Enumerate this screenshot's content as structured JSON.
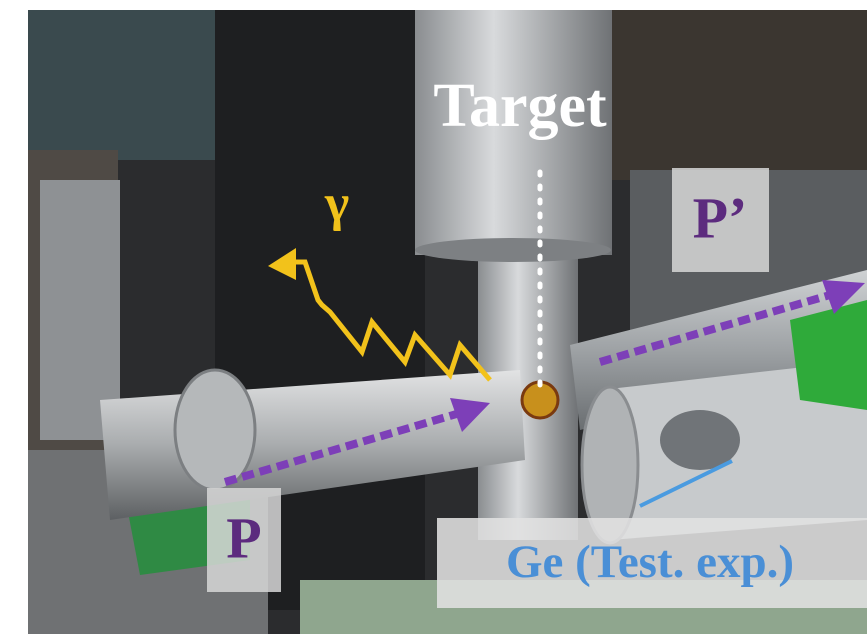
{
  "labels": {
    "target": "Target",
    "gamma": "γ",
    "p_prime": "P’",
    "p": "P",
    "ge": "Ge (Test. exp.)"
  }
}
